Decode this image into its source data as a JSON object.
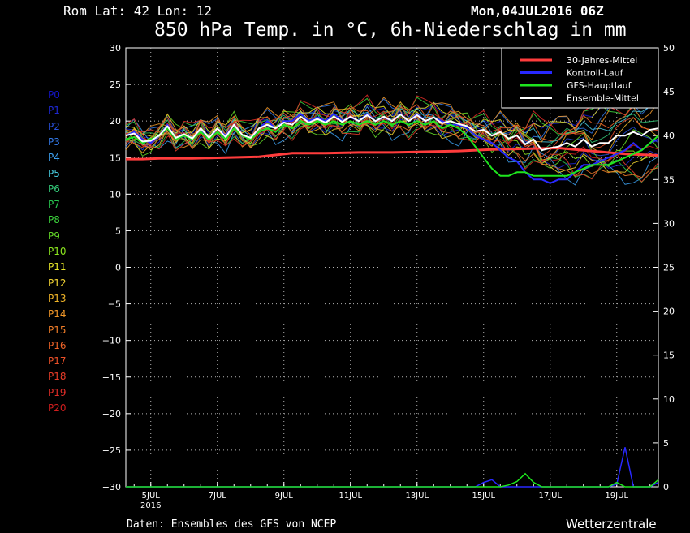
{
  "header": {
    "location": "Rom   Lat: 42 Lon: 12",
    "datetime": "Mon,04JUL2016 06Z",
    "title": "850 hPa Temp. in °C, 6h-Niederschlag in mm"
  },
  "footer": {
    "source": "Daten: Ensembles des GFS von NCEP",
    "brand": "Wetterzentrale"
  },
  "members": [
    {
      "label": "P0",
      "color": "#1414c8"
    },
    {
      "label": "P1",
      "color": "#1e28d2"
    },
    {
      "label": "P2",
      "color": "#2850dc"
    },
    {
      "label": "P3",
      "color": "#3278e6"
    },
    {
      "label": "P4",
      "color": "#3ca0f0"
    },
    {
      "label": "P5",
      "color": "#46c8dc"
    },
    {
      "label": "P6",
      "color": "#32c878"
    },
    {
      "label": "P7",
      "color": "#28c850"
    },
    {
      "label": "P8",
      "color": "#3cd23c"
    },
    {
      "label": "P9",
      "color": "#64dc28"
    },
    {
      "label": "P10",
      "color": "#8ce61e"
    },
    {
      "label": "P11",
      "color": "#e6e628"
    },
    {
      "label": "P12",
      "color": "#f0d232"
    },
    {
      "label": "P13",
      "color": "#f0b428"
    },
    {
      "label": "P14",
      "color": "#f09628"
    },
    {
      "label": "P15",
      "color": "#f07d28"
    },
    {
      "label": "P16",
      "color": "#f06428"
    },
    {
      "label": "P17",
      "color": "#eb5028"
    },
    {
      "label": "P18",
      "color": "#e63c28"
    },
    {
      "label": "P19",
      "color": "#e12d28"
    },
    {
      "label": "P20",
      "color": "#d21e1e"
    }
  ],
  "chart_data": {
    "type": "line",
    "x_start": "2016-07-04T06Z",
    "x_end": "2016-07-20T06Z",
    "x_ticks": [
      {
        "label": "5JUL",
        "sub": "2016",
        "t": 18
      },
      {
        "label": "7JUL",
        "t": 66
      },
      {
        "label": "9JUL",
        "t": 114
      },
      {
        "label": "11JUL",
        "t": 162
      },
      {
        "label": "13JUL",
        "t": 210
      },
      {
        "label": "15JUL",
        "t": 258
      },
      {
        "label": "17JUL",
        "t": 306
      },
      {
        "label": "19JUL",
        "t": 354
      }
    ],
    "y_left": {
      "label": "°C",
      "min": -30,
      "max": 30,
      "ticks": [
        30,
        25,
        20,
        15,
        10,
        5,
        0,
        -5,
        -10,
        -15,
        -20,
        -25,
        -30
      ]
    },
    "y_right": {
      "label": "mm",
      "min": 0,
      "max": 50,
      "ticks": [
        50,
        45,
        40,
        35,
        30,
        25,
        20,
        15,
        10,
        5,
        0
      ]
    },
    "grid": true,
    "legend_position": "top-right",
    "series": [
      {
        "name": "30-Jahres-Mittel",
        "color": "#ff3c3c",
        "width": 3,
        "t": [
          0,
          12,
          24,
          48,
          72,
          96,
          120,
          144,
          168,
          192,
          216,
          240,
          264,
          288,
          312,
          336,
          360,
          384
        ],
        "v": [
          14.8,
          14.8,
          14.9,
          14.9,
          15.0,
          15.1,
          15.6,
          15.6,
          15.7,
          15.7,
          15.8,
          15.9,
          16.1,
          16.2,
          16.3,
          15.9,
          15.5,
          15.3
        ]
      },
      {
        "name": "Kontroll-Lauf",
        "color": "#2828ff",
        "width": 2,
        "t": [
          0,
          6,
          12,
          18,
          24,
          30,
          36,
          42,
          48,
          54,
          60,
          66,
          72,
          78,
          84,
          90,
          96,
          102,
          108,
          114,
          120,
          126,
          132,
          138,
          144,
          150,
          156,
          162,
          168,
          174,
          180,
          186,
          192,
          198,
          204,
          210,
          216,
          222,
          228,
          234,
          240,
          246,
          252,
          258,
          264,
          270,
          276,
          282,
          288,
          294,
          300,
          306,
          312,
          318,
          324,
          330,
          336,
          342,
          348,
          354,
          360,
          366,
          372,
          378,
          384
        ],
        "v": [
          18,
          18.5,
          17.5,
          17,
          18,
          19.5,
          17.5,
          18,
          17.5,
          19,
          17.5,
          19,
          18,
          19.5,
          18,
          17.5,
          19,
          20,
          19,
          20,
          20,
          21,
          20,
          20.5,
          20,
          21,
          20,
          20.5,
          20,
          21,
          20,
          20.5,
          20,
          21,
          20,
          21,
          20,
          20.5,
          20,
          19.5,
          19.5,
          19,
          18,
          17.5,
          17,
          16,
          15,
          14.5,
          13,
          12,
          12,
          11.5,
          12,
          12,
          13,
          14,
          14,
          14.5,
          15,
          15.5,
          16,
          17,
          16,
          17,
          17.5
        ]
      },
      {
        "name": "GFS-Hauptlauf",
        "color": "#1ee61e",
        "width": 2,
        "t": [
          0,
          6,
          12,
          18,
          24,
          30,
          36,
          42,
          48,
          54,
          60,
          66,
          72,
          78,
          84,
          90,
          96,
          102,
          108,
          114,
          120,
          126,
          132,
          138,
          144,
          150,
          156,
          162,
          168,
          174,
          180,
          186,
          192,
          198,
          204,
          210,
          216,
          222,
          228,
          234,
          240,
          246,
          252,
          258,
          264,
          270,
          276,
          282,
          288,
          294,
          300,
          306,
          312,
          318,
          324,
          330,
          336,
          342,
          348,
          354,
          360,
          366,
          372,
          378,
          384
        ],
        "v": [
          17.5,
          17.8,
          17,
          17.5,
          18,
          19,
          17.5,
          18,
          17.5,
          18.5,
          17.5,
          18.5,
          17.5,
          19,
          18,
          17.5,
          18.5,
          19,
          18.5,
          19.5,
          19,
          20,
          19.5,
          20,
          19.5,
          20,
          19.5,
          20,
          19.5,
          20,
          19.5,
          20,
          19.5,
          20,
          19.5,
          20,
          19.5,
          20,
          19,
          19.5,
          19,
          18,
          16.5,
          15,
          13.5,
          12.5,
          12.5,
          13,
          13,
          12.5,
          12.5,
          12.5,
          12.5,
          12.5,
          13,
          13.5,
          14,
          14,
          14,
          14.5,
          15,
          15.5,
          16,
          17,
          18
        ]
      },
      {
        "name": "Ensemble-Mittel",
        "color": "#ffffff",
        "width": 2,
        "t": [
          0,
          6,
          12,
          18,
          24,
          30,
          36,
          42,
          48,
          54,
          60,
          66,
          72,
          78,
          84,
          90,
          96,
          102,
          108,
          114,
          120,
          126,
          132,
          138,
          144,
          150,
          156,
          162,
          168,
          174,
          180,
          186,
          192,
          198,
          204,
          210,
          216,
          222,
          228,
          234,
          240,
          246,
          252,
          258,
          264,
          270,
          276,
          282,
          288,
          294,
          300,
          306,
          312,
          318,
          324,
          330,
          336,
          342,
          348,
          354,
          360,
          366,
          372,
          378,
          384
        ],
        "v": [
          18,
          18.3,
          17.2,
          17.3,
          18,
          19.3,
          17.7,
          18.2,
          17.6,
          19,
          17.7,
          19,
          17.8,
          19.5,
          18.1,
          17.7,
          19,
          19.5,
          19,
          19.8,
          19.5,
          20.6,
          19.8,
          20.3,
          19.8,
          20.6,
          19.9,
          20.6,
          20,
          20.8,
          20,
          20.6,
          20,
          20.9,
          20,
          20.8,
          20,
          20.5,
          19.7,
          20,
          19.6,
          19.3,
          18.6,
          18.8,
          18,
          18.5,
          17.6,
          18,
          16.8,
          17.5,
          16,
          16.3,
          16.5,
          17,
          16.5,
          17.5,
          16.5,
          17,
          17,
          18,
          18,
          18.5,
          18,
          18.8,
          19
        ]
      }
    ],
    "precip_series": [
      {
        "name": "Kontroll-Lauf",
        "color": "#2828ff",
        "t": [
          0,
          252,
          258,
          264,
          270,
          276,
          282,
          288,
          294,
          300,
          306,
          312,
          318,
          324,
          330,
          336,
          342,
          348,
          354,
          360,
          366,
          372,
          378,
          384
        ],
        "v": [
          0,
          0,
          0.5,
          0.8,
          0,
          0,
          0,
          0,
          0,
          0,
          0,
          0,
          0,
          0,
          0,
          0,
          0,
          0,
          0.3,
          4.5,
          0,
          0,
          0,
          0.5
        ]
      },
      {
        "name": "GFS-Hauptlauf",
        "color": "#1ee61e",
        "t": [
          0,
          264,
          270,
          276,
          282,
          288,
          294,
          300,
          306,
          312,
          318,
          324,
          330,
          336,
          342,
          348,
          354,
          360,
          366,
          372,
          378,
          384
        ],
        "v": [
          0,
          0,
          0,
          0.2,
          0.6,
          1.5,
          0.5,
          0,
          0,
          0,
          0,
          0,
          0,
          0,
          0,
          0,
          0.5,
          0,
          0,
          0,
          0,
          0.8
        ]
      }
    ]
  }
}
